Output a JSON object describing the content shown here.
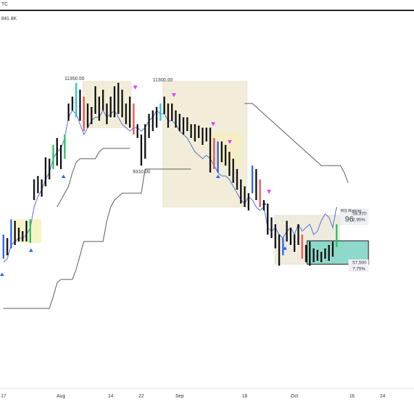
{
  "header": {
    "symbol": "TC",
    "volume": "841.8K"
  },
  "chart_data": {
    "type": "ohlc",
    "ylim": [
      3600,
      13200
    ],
    "categories": [
      "17",
      null,
      null,
      null,
      null,
      null,
      null,
      null,
      null,
      null,
      null,
      null,
      null,
      null,
      null,
      "Aug",
      null,
      null,
      null,
      null,
      null,
      null,
      null,
      null,
      null,
      null,
      null,
      null,
      "14",
      null,
      null,
      null,
      null,
      null,
      null,
      null,
      "22",
      null,
      null,
      null,
      null,
      null,
      null,
      null,
      null,
      null,
      "Sep",
      null,
      null,
      null,
      null,
      null,
      null,
      null,
      null,
      null,
      null,
      null,
      null,
      null,
      null,
      null,
      null,
      "18",
      null,
      null,
      null,
      null,
      null,
      null,
      null,
      null,
      null,
      null,
      null,
      null,
      "Oct",
      null,
      null,
      null,
      null,
      null,
      null,
      null,
      null,
      null,
      null,
      null,
      null,
      null,
      null,
      "16",
      null,
      null,
      null,
      null,
      null,
      null,
      null,
      "24"
    ],
    "high": [
      7760,
      7680,
      8112,
      8080,
      7920,
      7840,
      8080,
      8112,
      9040,
      9120,
      9040,
      9552,
      9520,
      9840,
      10000,
      9840,
      10080,
      10800,
      10960,
      11280,
      11120,
      10960,
      10800,
      10720,
      11200,
      10960,
      11120,
      10800,
      10960,
      11200,
      11280,
      11120,
      10800,
      10960,
      10800,
      10320,
      10080,
      10320,
      10560,
      10640,
      10720,
      10800,
      10960,
      10800,
      10800,
      10640,
      10560,
      10480,
      10480,
      10320,
      10320,
      10288,
      10240,
      10240,
      10240,
      10000,
      9920,
      9920,
      9840,
      9680,
      9520,
      9280,
      9040,
      8880,
      8720,
      9360,
      9280,
      9040,
      8560,
      8480,
      8160,
      8000,
      7760,
      7680,
      8080,
      7920,
      7760,
      8000,
      7760,
      7520,
      7600,
      7440,
      7408,
      7360,
      7440,
      7520,
      7600,
      8000,
      null,
      null,
      null,
      null,
      null,
      null,
      null,
      null,
      null,
      null,
      null,
      null
    ],
    "low": [
      7200,
      7280,
      7440,
      7520,
      7600,
      7600,
      7600,
      7568,
      8560,
      8720,
      8640,
      8880,
      9040,
      9280,
      9360,
      9280,
      9520,
      10400,
      10640,
      10480,
      10400,
      10160,
      10240,
      10320,
      10560,
      10400,
      10640,
      10320,
      10480,
      10480,
      10560,
      10480,
      10320,
      10240,
      10080,
      10000,
      9360,
      9520,
      10000,
      10160,
      10240,
      10400,
      10560,
      10240,
      10400,
      10240,
      10160,
      10080,
      10160,
      10000,
      9920,
      10000,
      9840,
      9920,
      9200,
      9280,
      9200,
      9440,
      9360,
      9120,
      8960,
      8800,
      8480,
      8400,
      8320,
      8720,
      8560,
      8400,
      8320,
      7760,
      7680,
      7440,
      7040,
      7280,
      7600,
      7520,
      7360,
      7520,
      7200,
      7120,
      7040,
      7120,
      7152,
      7120,
      7200,
      7152,
      7248,
      7472,
      null,
      null,
      null,
      null,
      null,
      null,
      null,
      null,
      null,
      null,
      null,
      null
    ],
    "bar_colors": [
      "#2962ff",
      "#111",
      "#2962ff",
      "#111",
      "#111",
      "#111",
      "#111",
      "#22c55e",
      "#111",
      "#111",
      "#111",
      "#111",
      "#111",
      "#22c55e",
      "#111",
      "#111",
      "#22c55e",
      "#111",
      "#111",
      "#26c6da",
      "#111",
      "#ef5350",
      "#111",
      "#111",
      "#111",
      "#111",
      "#111",
      "#111",
      "#111",
      "#111",
      "#111",
      "#111",
      "#111",
      "#111",
      "#ef5350",
      "#111",
      "#111",
      "#111",
      "#111",
      "#111",
      "#111",
      "#26c6da",
      "#111",
      "#111",
      "#111",
      "#111",
      "#111",
      "#111",
      "#111",
      "#111",
      "#111",
      "#111",
      "#111",
      "#111",
      "#111",
      "#ef5350",
      "#2962ff",
      "#111",
      "#111",
      "#111",
      "#111",
      "#111",
      "#111",
      "#111",
      "#111",
      "#2962ff",
      "#111",
      "#ef5350",
      "#111",
      "#111",
      "#111",
      "#111",
      "#111",
      "#2962ff",
      "#111",
      "#111",
      "#111",
      "#111",
      "#ef5350",
      "#111",
      "#111",
      "#111",
      "#111",
      "#111",
      "#111",
      "#111",
      "#111",
      "#22c55e",
      null,
      null,
      null,
      null,
      null,
      null,
      null,
      null,
      null,
      null,
      null,
      null
    ],
    "lines": [
      {
        "color": "#4a6cd4",
        "values": [
          7120,
          7200,
          7520,
          7600,
          7680,
          7680,
          7760,
          7920,
          8400,
          8640,
          8800,
          9040,
          9200,
          9520,
          9680,
          9760,
          10000,
          10480,
          10640,
          10560,
          10320,
          10080,
          10240,
          10400,
          10480,
          10480,
          10640,
          10480,
          10560,
          10640,
          10480,
          10320,
          10240,
          10160,
          10240,
          10240,
          10160,
          10240,
          10400,
          10480,
          10640,
          10560,
          10560,
          10400,
          10400,
          10320,
          10160,
          10080,
          10000,
          9840,
          9680,
          9600,
          9520,
          9600,
          9520,
          9360,
          9200,
          9120,
          9120,
          9040,
          8880,
          8720,
          8560,
          8480,
          8640,
          8560,
          8400,
          8320,
          8400,
          7920,
          7840,
          7920,
          7760,
          7680,
          7840,
          7920,
          7760,
          8000,
          7840,
          7920,
          8000,
          7760,
          7840,
          8080,
          8240,
          8160,
          7920,
          8400,
          null,
          null,
          null,
          null,
          null,
          null,
          null,
          null,
          null,
          null,
          null,
          null
        ]
      },
      {
        "color": "#555555",
        "values": [
          6048,
          6048,
          6048,
          6048,
          6048,
          6048,
          6048,
          6048,
          6048,
          6048,
          6048,
          6048,
          6048,
          6320,
          6640,
          6720,
          6720,
          6720,
          6720,
          6960,
          7280,
          7600,
          7600,
          7600,
          7600,
          7600,
          7600,
          8080,
          8400,
          8560,
          8640,
          8720,
          8720,
          8720,
          8720,
          8720,
          8720,
          9280,
          9280,
          9280,
          9280,
          9280,
          9280,
          9280,
          9280,
          9280,
          9280,
          9280,
          9280,
          9280,
          null,
          null,
          null,
          null,
          null,
          null,
          null,
          null,
          null,
          null,
          null,
          null,
          null,
          null,
          null,
          null,
          null,
          null,
          null,
          null,
          null,
          null,
          null,
          null,
          null,
          null,
          null,
          null,
          null,
          null,
          null,
          null,
          null,
          null,
          null,
          null,
          null,
          null,
          null,
          null,
          null,
          null,
          null,
          null,
          null,
          null,
          null,
          null,
          null,
          null
        ]
      },
      {
        "color": "#555555",
        "values": [
          null,
          null,
          null,
          null,
          null,
          null,
          null,
          null,
          null,
          null,
          null,
          null,
          null,
          null,
          8400,
          8560,
          8720,
          8880,
          9200,
          9440,
          9520,
          9520,
          9520,
          9520,
          9520,
          9680,
          9760,
          9760,
          9760,
          9760,
          9760,
          9760,
          9760,
          9760,
          null,
          null,
          null,
          null,
          null,
          null,
          null,
          null,
          null,
          null,
          null,
          null,
          null,
          null,
          null,
          null,
          null,
          null,
          null,
          null,
          null,
          null,
          null,
          null,
          null,
          null,
          null,
          null,
          null,
          null,
          null,
          null,
          null,
          null,
          null,
          null,
          null,
          null,
          null,
          null,
          null,
          null,
          null,
          null,
          null,
          null,
          null,
          null,
          null,
          null,
          null,
          null,
          null,
          null,
          null,
          null,
          null,
          null,
          null,
          null,
          null,
          null,
          null,
          null,
          null,
          null
        ]
      },
      {
        "color": "#555555",
        "values": [
          null,
          null,
          null,
          null,
          null,
          null,
          null,
          null,
          null,
          null,
          null,
          null,
          null,
          null,
          null,
          null,
          null,
          null,
          null,
          null,
          null,
          null,
          null,
          null,
          null,
          null,
          null,
          null,
          null,
          null,
          null,
          null,
          null,
          null,
          null,
          null,
          null,
          null,
          null,
          null,
          null,
          null,
          null,
          null,
          null,
          null,
          null,
          null,
          null,
          null,
          null,
          null,
          null,
          null,
          null,
          null,
          null,
          null,
          null,
          null,
          null,
          null,
          null,
          10800,
          10800,
          10800,
          10720,
          10640,
          10560,
          10480,
          10400,
          10320,
          10240,
          10160,
          10080,
          10000,
          9920,
          9840,
          9760,
          9680,
          9600,
          9520,
          9440,
          9360,
          9360,
          9360,
          9360,
          9360,
          9360,
          9200,
          8960,
          null,
          null,
          null,
          null,
          null,
          null,
          null,
          null,
          null
        ]
      }
    ],
    "annotations": [
      {
        "text": "11350.00"
      },
      {
        "text": "11300.00"
      },
      {
        "text": "9310.00"
      },
      {
        "text": "RS Rating"
      },
      {
        "text": "96"
      },
      {
        "text": "58,370"
      },
      {
        "text": "2.95%"
      },
      {
        "text": "57,500"
      },
      {
        "text": "7.75%"
      }
    ]
  }
}
